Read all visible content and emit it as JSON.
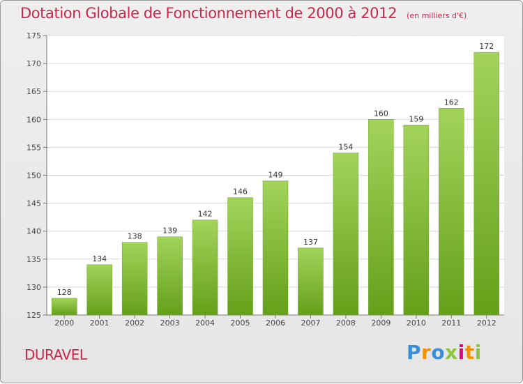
{
  "chart_data": {
    "type": "bar",
    "title": "Dotation Globale de Fonctionnement de 2000 à 2012",
    "subtitle": "(en milliers d'€)",
    "categories": [
      "2000",
      "2001",
      "2002",
      "2003",
      "2004",
      "2005",
      "2006",
      "2007",
      "2008",
      "2009",
      "2010",
      "2011",
      "2012"
    ],
    "values": [
      128,
      134,
      138,
      139,
      142,
      146,
      149,
      137,
      154,
      160,
      159,
      162,
      172
    ],
    "ylim": [
      125,
      175
    ],
    "yticks": [
      125,
      130,
      135,
      140,
      145,
      150,
      155,
      160,
      165,
      170,
      175
    ],
    "grid": true,
    "bar_color": "#8cc63f",
    "xlabel": "",
    "ylabel": ""
  },
  "footer": {
    "commune": "DURAVEL",
    "brand": "Proxiti"
  },
  "colors": {
    "title": "#c8284c",
    "brand_letters": [
      "#3a8fd6",
      "#f39200",
      "#3a8fd6",
      "#8cc63f",
      "#e6007e",
      "#f39200",
      "#8cc63f"
    ]
  }
}
